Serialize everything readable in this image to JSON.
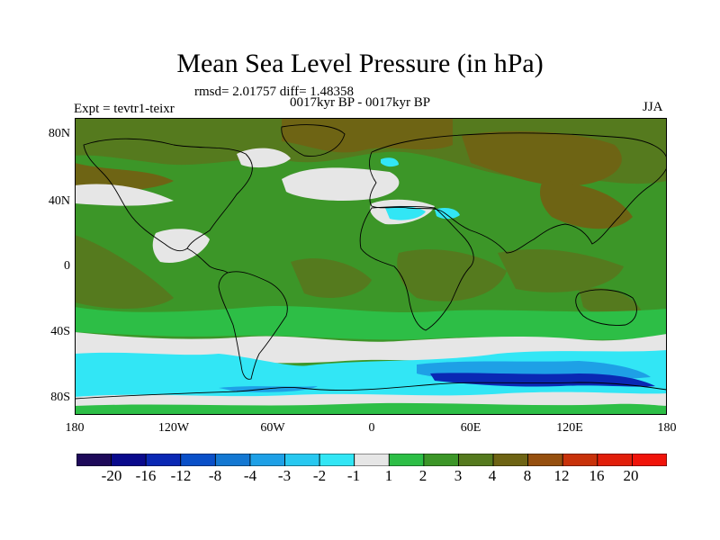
{
  "plot": {
    "title": "Mean Sea Level Pressure (in hPa)",
    "stats": "rmsd= 2.01757 diff= 1.48358",
    "period": "0017kyr BP - 0017kyr BP",
    "expt": "Expt = tevtr1-teixr",
    "season": "JJA"
  },
  "axes": {
    "lat_labels": [
      "80N",
      "40N",
      "0",
      "40S",
      "80S"
    ],
    "lon_labels": [
      "180",
      "120W",
      "60W",
      "0",
      "60E",
      "120E",
      "180"
    ]
  },
  "colorbar": {
    "labels": [
      "-20",
      "-16",
      "-12",
      "-8",
      "-4",
      "-3",
      "-2",
      "-1",
      "1",
      "2",
      "3",
      "4",
      "8",
      "12",
      "16",
      "20"
    ],
    "colors": [
      "#1e0a5a",
      "#0a0a8c",
      "#0a28b4",
      "#0a50c8",
      "#1478d2",
      "#1ea0e6",
      "#28c8f0",
      "#32e6f5",
      "#e6e6e6",
      "#2dbe46",
      "#3c9628",
      "#557a1e",
      "#6e6414",
      "#96500f",
      "#c8320a",
      "#e11e0a",
      "#f0140a"
    ]
  },
  "map": {
    "colors": {
      "background": "#3c9628",
      "light_green": "#2dbe46",
      "olive": "#557a1e",
      "brown": "#6e6414",
      "gray": "#e6e6e6",
      "cyan": "#32e6f5",
      "sky": "#1ea0e6",
      "blue": "#0a28b4",
      "coast": "#000000"
    }
  }
}
